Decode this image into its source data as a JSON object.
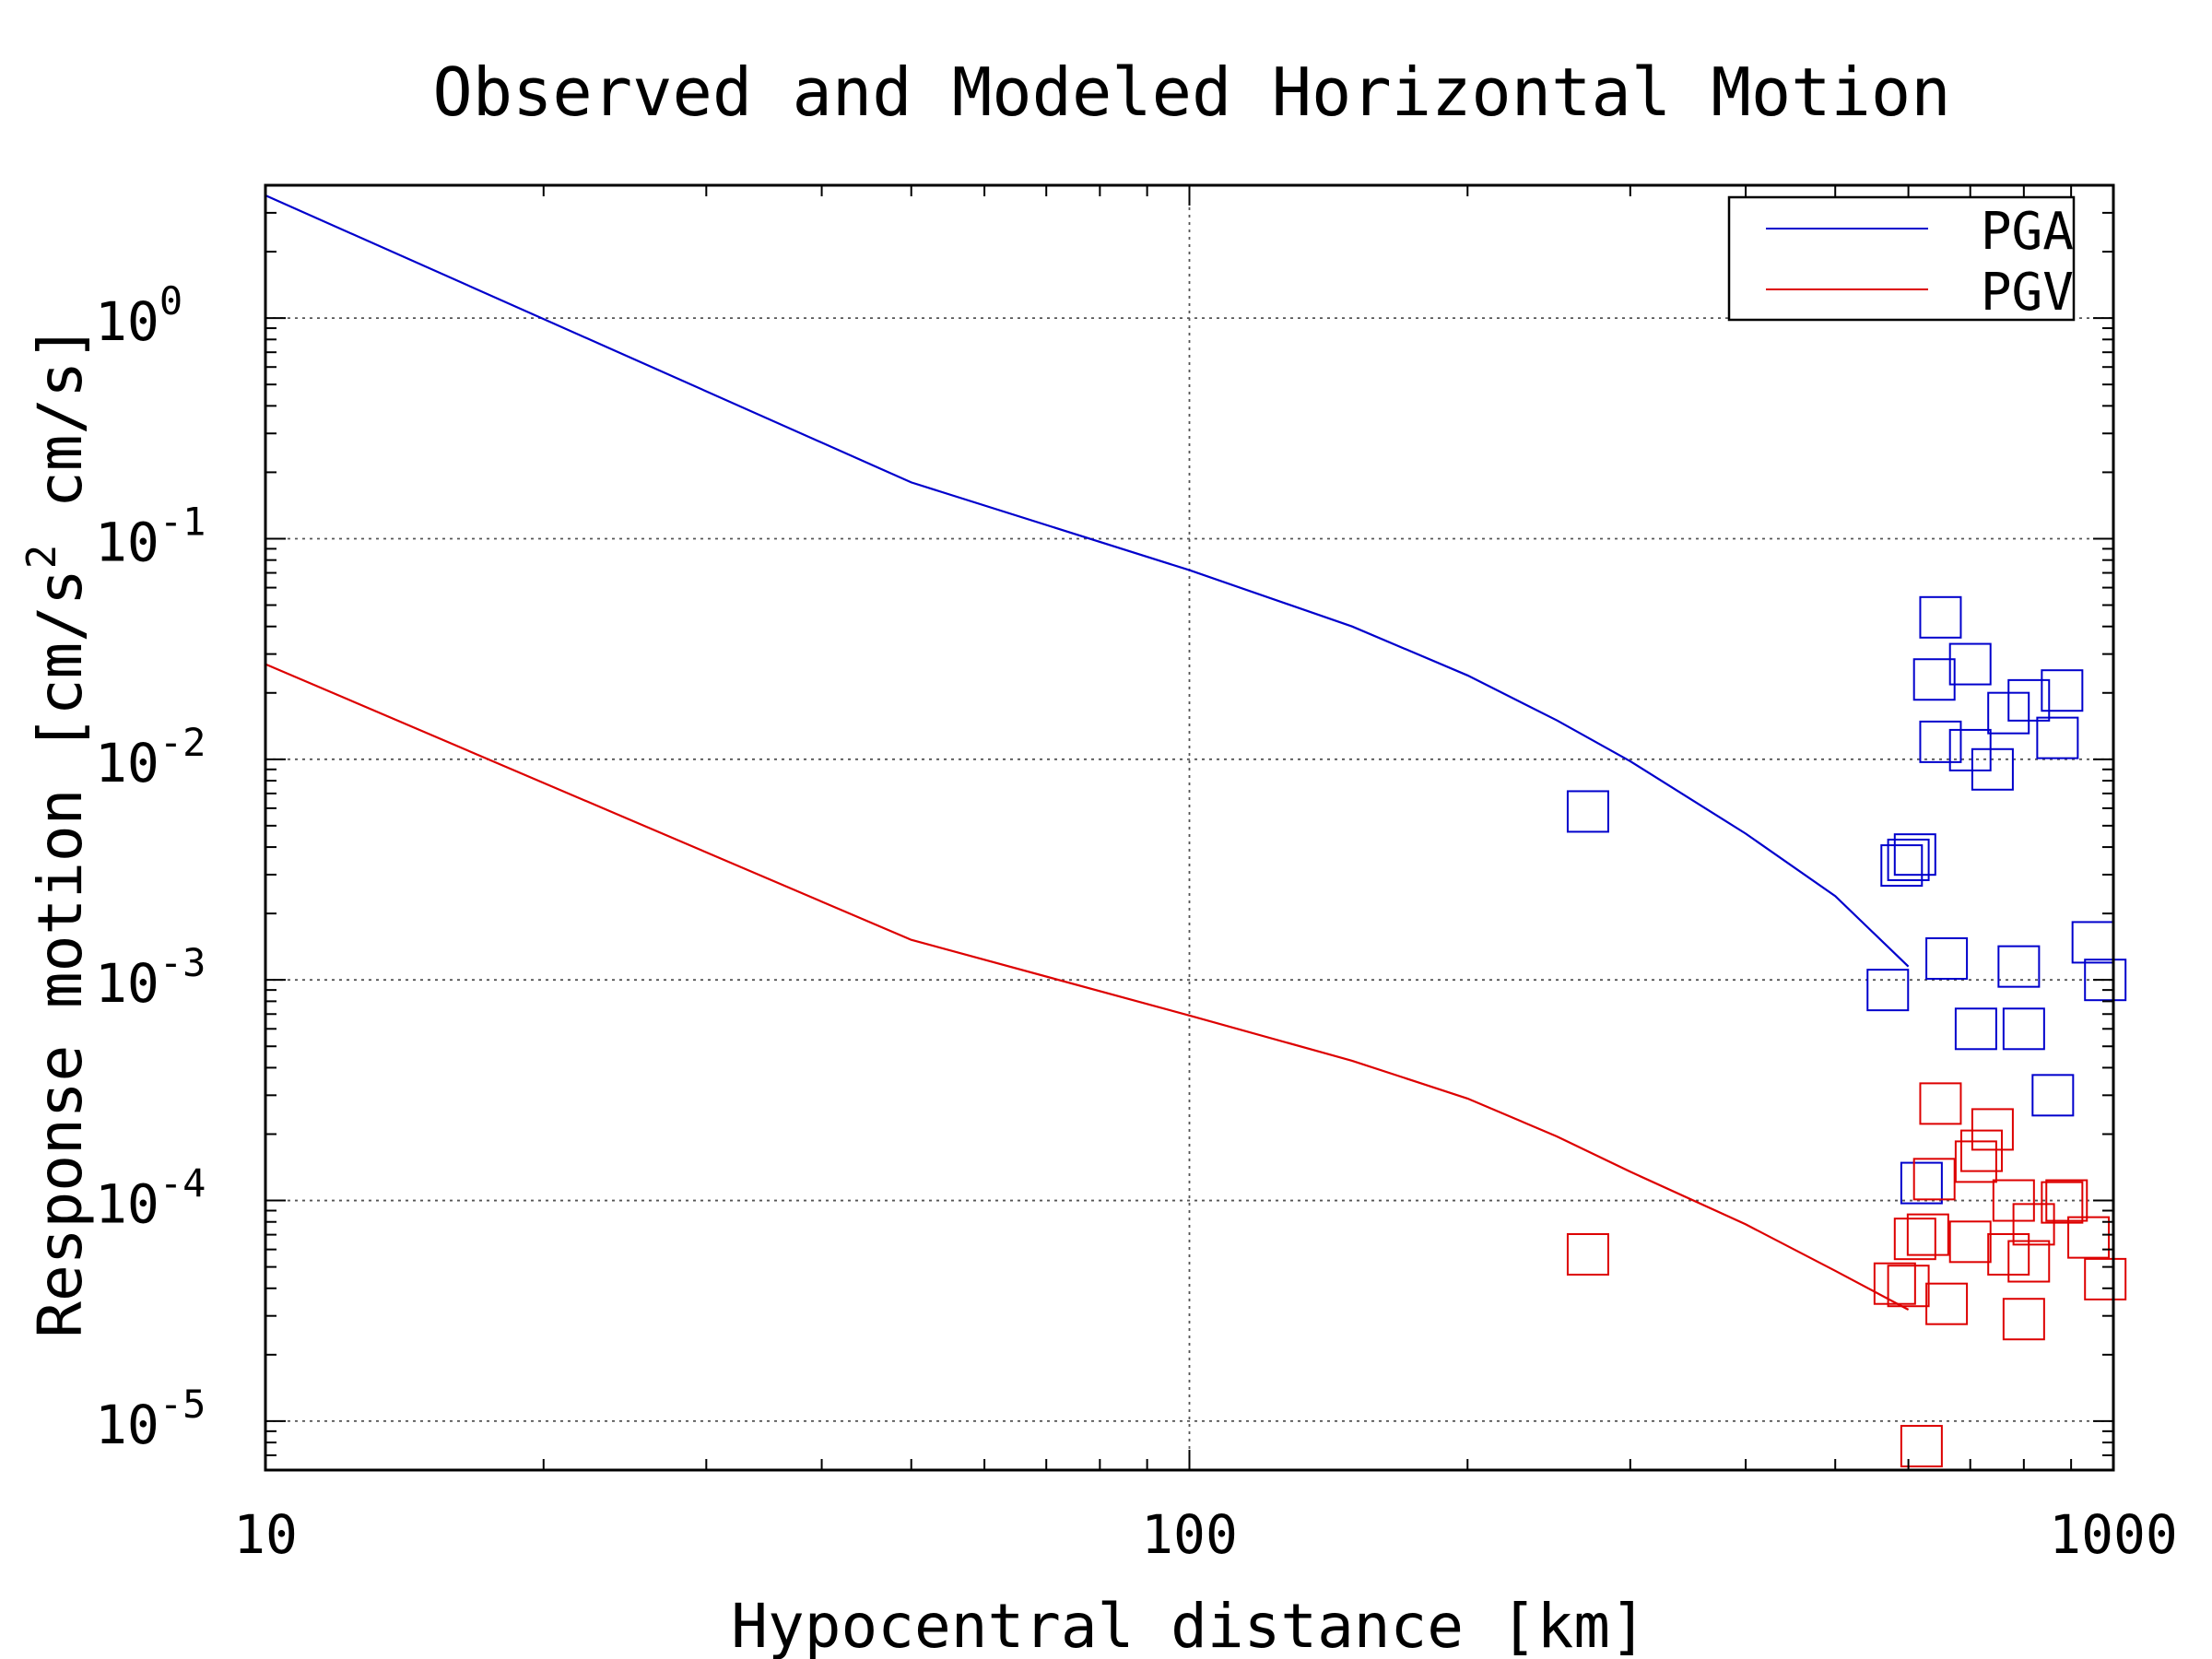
{
  "chart_data": {
    "type": "scatter",
    "title": "Observed and Modeled Horizontal Motion",
    "xlabel": "Hypocentral distance [km]",
    "ylabel_parts": [
      "Response motion [cm/s",
      "2",
      " cm/s]"
    ],
    "x_scale": "log",
    "y_scale": "log",
    "xlim": [
      10,
      1000
    ],
    "ylim": [
      6e-06,
      4
    ],
    "x_ticks": [
      {
        "value": 10,
        "label": "10"
      },
      {
        "value": 100,
        "label": "100"
      },
      {
        "value": 1000,
        "label": "1000"
      }
    ],
    "y_ticks": [
      {
        "exp": 0,
        "base": "10",
        "sup": "0"
      },
      {
        "exp": -1,
        "base": "10",
        "sup": "-1"
      },
      {
        "exp": -2,
        "base": "10",
        "sup": "-2"
      },
      {
        "exp": -3,
        "base": "10",
        "sup": "-3"
      },
      {
        "exp": -4,
        "base": "10",
        "sup": "-4"
      },
      {
        "exp": -5,
        "base": "10",
        "sup": "-5"
      }
    ],
    "grid": true,
    "legend_position": "top-right",
    "legend": [
      {
        "label": "PGA",
        "color": "#0000cc"
      },
      {
        "label": "PGV",
        "color": "#dd0000"
      }
    ],
    "colors": {
      "pga": "#0000cc",
      "pgv": "#dd0000"
    },
    "lines": {
      "pga": [
        [
          10,
          3.6
        ],
        [
          50,
          0.18
        ],
        [
          100,
          0.072
        ],
        [
          150,
          0.04
        ],
        [
          200,
          0.024
        ],
        [
          250,
          0.015
        ],
        [
          300,
          0.0098
        ],
        [
          400,
          0.0046
        ],
        [
          500,
          0.0024
        ],
        [
          600,
          0.00115
        ]
      ],
      "pgv": [
        [
          10,
          0.027
        ],
        [
          50,
          0.00152
        ],
        [
          100,
          0.00069
        ],
        [
          150,
          0.00043
        ],
        [
          200,
          0.00029
        ],
        [
          250,
          0.000195
        ],
        [
          300,
          0.000135
        ],
        [
          400,
          7.8e-05
        ],
        [
          500,
          4.8e-05
        ],
        [
          600,
          3.2e-05
        ]
      ]
    },
    "observed": {
      "pga": [
        [
          270,
          0.0058
        ],
        [
          570,
          0.0009
        ],
        [
          590,
          0.0033
        ],
        [
          600,
          0.0035
        ],
        [
          610,
          0.0037
        ],
        [
          620,
          0.00012
        ],
        [
          640,
          0.023
        ],
        [
          650,
          0.044
        ],
        [
          650,
          0.012
        ],
        [
          660,
          0.00125
        ],
        [
          700,
          0.027
        ],
        [
          700,
          0.011
        ],
        [
          710,
          0.0006
        ],
        [
          740,
          0.009
        ],
        [
          770,
          0.0162
        ],
        [
          790,
          0.00115
        ],
        [
          800,
          0.0006
        ],
        [
          810,
          0.0185
        ],
        [
          860,
          0.0003
        ],
        [
          870,
          0.0125
        ],
        [
          880,
          0.0205
        ],
        [
          950,
          0.00148
        ],
        [
          980,
          0.001
        ]
      ],
      "pgv": [
        [
          270,
          5.7e-05
        ],
        [
          580,
          4.2e-05
        ],
        [
          600,
          4.1e-05
        ],
        [
          610,
          6.7e-05
        ],
        [
          620,
          7.7e-06
        ],
        [
          630,
          7e-05
        ],
        [
          640,
          0.000125
        ],
        [
          650,
          0.000275
        ],
        [
          660,
          3.4e-05
        ],
        [
          700,
          6.5e-05
        ],
        [
          710,
          0.00015
        ],
        [
          720,
          0.000168
        ],
        [
          740,
          0.00021
        ],
        [
          770,
          5.7e-05
        ],
        [
          780,
          0.0001
        ],
        [
          800,
          2.9e-05
        ],
        [
          810,
          5.3e-05
        ],
        [
          820,
          7.8e-05
        ],
        [
          880,
          9.8e-05
        ],
        [
          890,
          0.0001
        ],
        [
          940,
          6.8e-05
        ],
        [
          980,
          4.4e-05
        ]
      ]
    }
  }
}
